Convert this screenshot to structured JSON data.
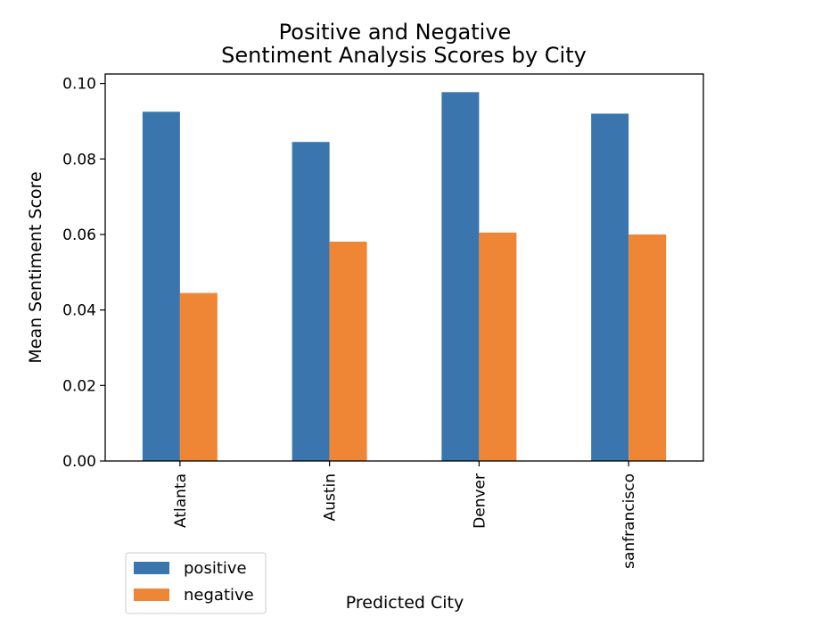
{
  "chart_data": {
    "type": "bar",
    "title": "Positive and Negative\nSentiment Analysis Scores by City",
    "xlabel": "Predicted City",
    "ylabel": "Mean Sentiment Score",
    "categories": [
      "Atlanta",
      "Austin",
      "Denver",
      "sanfrancisco"
    ],
    "series": [
      {
        "name": "positive",
        "color": "#3a75ad",
        "values": [
          0.0925,
          0.0845,
          0.0977,
          0.092
        ]
      },
      {
        "name": "negative",
        "color": "#ef8636",
        "values": [
          0.0445,
          0.0581,
          0.0605,
          0.06
        ]
      }
    ],
    "ylim": [
      0,
      0.1025
    ],
    "yticks": [
      0.0,
      0.02,
      0.04,
      0.06,
      0.08,
      0.1
    ],
    "ytick_labels": [
      "0.00",
      "0.02",
      "0.04",
      "0.06",
      "0.08",
      "0.10"
    ],
    "grid": false,
    "legend_position": "lower-left, below the axes"
  }
}
